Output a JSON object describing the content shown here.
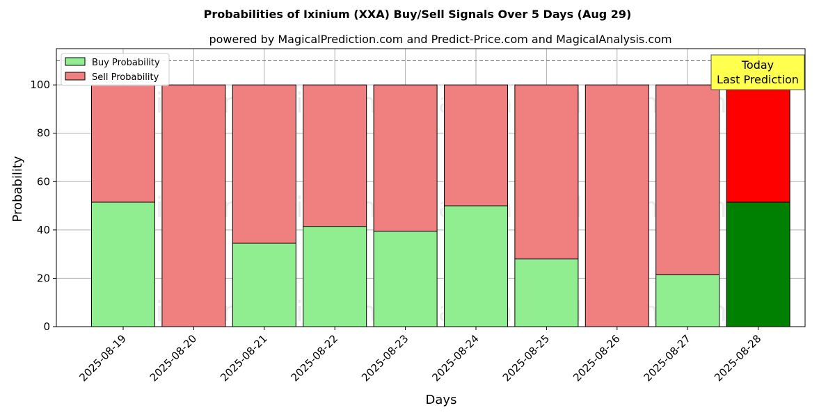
{
  "chart_data": {
    "type": "bar",
    "stacked": true,
    "title": "Probabilities of Ixinium (XXA) Buy/Sell Signals Over 5 Days (Aug 29)",
    "subtitle": "powered by MagicalPrediction.com and Predict-Price.com and MagicalAnalysis.com",
    "xlabel": "Days",
    "ylabel": "Probability",
    "ylim": [
      0,
      115
    ],
    "yticks": [
      0,
      20,
      40,
      60,
      80,
      100
    ],
    "grid": true,
    "legend_position": "top-left",
    "reference_line": 110,
    "categories": [
      "2025-08-19",
      "2025-08-20",
      "2025-08-21",
      "2025-08-22",
      "2025-08-23",
      "2025-08-24",
      "2025-08-25",
      "2025-08-26",
      "2025-08-27",
      "2025-08-28"
    ],
    "series": [
      {
        "name": "Buy Probability",
        "color": "#90ee90",
        "highlight_color": "#008000",
        "values": [
          51.5,
          0,
          34.5,
          41.5,
          39.5,
          50,
          28,
          0,
          21.5,
          51.5
        ]
      },
      {
        "name": "Sell Probability",
        "color": "#f08080",
        "highlight_color": "#ff0000",
        "values": [
          48.5,
          100,
          65.5,
          58.5,
          60.5,
          50,
          72,
          100,
          78.5,
          48.5
        ]
      }
    ],
    "highlight_index": 9,
    "annotation": {
      "line1": "Today",
      "line2": "Last Prediction",
      "color": "#ffff4d"
    },
    "watermarks": [
      "MagicalAnalysis.com",
      "MagicalPrediction.com"
    ]
  }
}
